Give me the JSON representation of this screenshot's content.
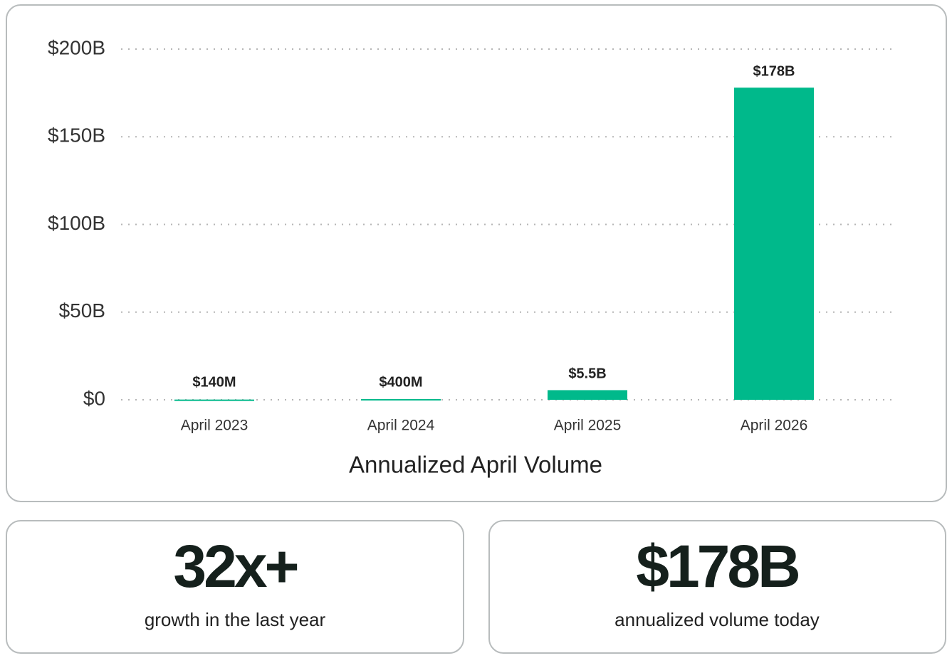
{
  "chart_data": {
    "type": "bar",
    "x_label": "Annualized April Volume",
    "categories": [
      "April 2023",
      "April 2024",
      "April 2025",
      "April 2026"
    ],
    "values": [
      140000000,
      400000000,
      5500000000,
      178000000000
    ],
    "value_labels": [
      "$140M",
      "$400M",
      "$5.5B",
      "$178B"
    ],
    "color": "#00b98b",
    "ylim": [
      0,
      200000000000
    ],
    "yticks": [
      {
        "value": 0,
        "label": "$0"
      },
      {
        "value": 50000000000,
        "label": "$50B"
      },
      {
        "value": 100000000000,
        "label": "$100B"
      },
      {
        "value": 150000000000,
        "label": "$150B"
      },
      {
        "value": 200000000000,
        "label": "$200B"
      }
    ],
    "grid": true
  },
  "stats": [
    {
      "value": "32x+",
      "label": "growth in the last year"
    },
    {
      "value": "$178B",
      "label": "annualized volume today"
    }
  ]
}
